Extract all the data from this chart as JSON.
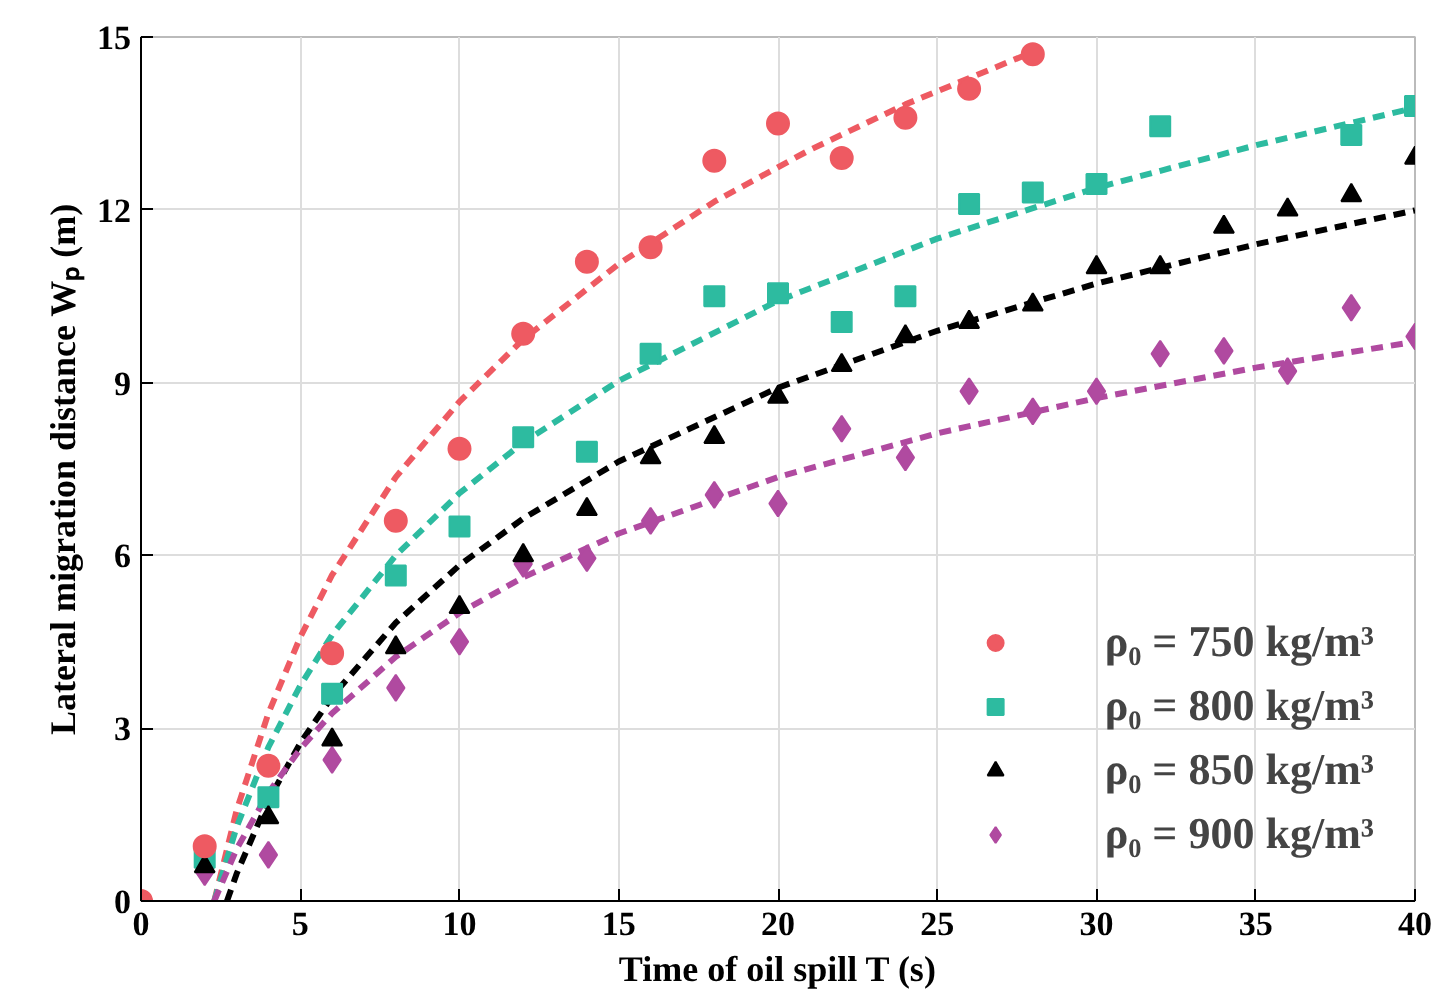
{
  "chart_data": {
    "type": "scatter",
    "xlabel": "Time of oil spill T (s)",
    "ylabel": "Lateral migration distance Wₚ (m)",
    "xlim": [
      0,
      40
    ],
    "ylim": [
      0,
      15
    ],
    "xticks": [
      0,
      5,
      10,
      15,
      20,
      25,
      30,
      35,
      40
    ],
    "yticks": [
      0,
      3,
      6,
      9,
      12,
      15
    ],
    "grid": true,
    "legend": "bottom right",
    "series": [
      {
        "name": "ρ₀ = 750 kg/m³",
        "color": "#ee5a62",
        "marker": "circle",
        "x": [
          0,
          2,
          4,
          6,
          8,
          10,
          12,
          14,
          16,
          18,
          20,
          22,
          24,
          26,
          28
        ],
        "values": [
          0,
          0.95,
          2.35,
          4.3,
          6.6,
          7.85,
          9.85,
          11.1,
          11.35,
          12.85,
          13.5,
          12.9,
          13.6,
          14.1,
          14.7
        ]
      },
      {
        "name": "ρ₀ = 800 kg/m³",
        "color": "#2dbba0",
        "marker": "square",
        "x": [
          2,
          4,
          6,
          8,
          10,
          12,
          14,
          16,
          18,
          20,
          22,
          24,
          26,
          28,
          30,
          32,
          38,
          40
        ],
        "values": [
          0.75,
          1.8,
          3.6,
          5.65,
          6.5,
          8.05,
          7.8,
          9.5,
          10.5,
          10.55,
          10.05,
          10.5,
          12.1,
          12.3,
          12.45,
          13.45,
          13.3,
          13.8
        ]
      },
      {
        "name": "ρ₀ = 850 kg/m³",
        "color": "#000000",
        "marker": "triangle",
        "x": [
          2,
          4,
          6,
          8,
          10,
          12,
          14,
          16,
          18,
          20,
          22,
          24,
          26,
          28,
          30,
          32,
          34,
          36,
          38,
          40
        ],
        "values": [
          0.6,
          1.45,
          2.8,
          4.4,
          5.1,
          6.0,
          6.8,
          7.7,
          8.05,
          8.75,
          9.3,
          9.8,
          10.05,
          10.35,
          11.0,
          11.0,
          11.7,
          12.0,
          12.25,
          12.9
        ]
      },
      {
        "name": "ρ₀ = 900 kg/m³",
        "color": "#b04aa0",
        "marker": "diamond",
        "x": [
          2,
          4,
          6,
          8,
          10,
          12,
          14,
          16,
          18,
          20,
          22,
          24,
          26,
          28,
          30,
          32,
          34,
          36,
          38,
          40
        ],
        "values": [
          0.5,
          0.8,
          2.45,
          3.7,
          4.5,
          5.85,
          5.95,
          6.6,
          7.05,
          6.9,
          8.2,
          7.7,
          8.85,
          8.5,
          8.85,
          9.5,
          9.55,
          9.2,
          10.3,
          9.8
        ]
      },
      {
        "type": "line",
        "line_style": "dashed",
        "color": "#ee5a62",
        "x": [
          2.3,
          3,
          4,
          5,
          6,
          8,
          10,
          12,
          15,
          18,
          21,
          24,
          28
        ],
        "values": [
          0,
          1.57,
          3.26,
          4.58,
          5.66,
          7.36,
          8.67,
          9.75,
          11.06,
          12.14,
          13.04,
          13.83,
          14.74
        ]
      },
      {
        "type": "line",
        "line_style": "dashed",
        "color": "#2dbba0",
        "x": [
          2.3,
          3,
          4,
          5,
          6,
          8,
          10,
          12,
          15,
          20,
          25,
          30,
          35,
          40
        ],
        "values": [
          0,
          1.28,
          2.67,
          3.74,
          4.62,
          6.0,
          7.08,
          7.96,
          9.03,
          10.42,
          11.5,
          12.38,
          13.12,
          13.77
        ]
      },
      {
        "type": "line",
        "line_style": "dashed",
        "color": "#000000",
        "x": [
          2.7,
          3,
          4,
          5,
          6,
          8,
          10,
          12,
          15,
          20,
          25,
          30,
          35,
          40
        ],
        "values": [
          0,
          0.47,
          1.75,
          2.74,
          3.55,
          4.83,
          5.83,
          6.64,
          7.63,
          8.91,
          9.9,
          10.72,
          11.4,
          11.99
        ]
      },
      {
        "type": "line",
        "line_style": "dashed",
        "color": "#b04aa0",
        "x": [
          2.3,
          3,
          4,
          5,
          6,
          8,
          10,
          12,
          15,
          20,
          25,
          30,
          35,
          40
        ],
        "values": [
          0,
          0.9,
          1.88,
          2.64,
          3.26,
          4.24,
          5.0,
          5.62,
          6.38,
          7.36,
          8.12,
          8.73,
          9.26,
          9.71
        ]
      }
    ]
  }
}
